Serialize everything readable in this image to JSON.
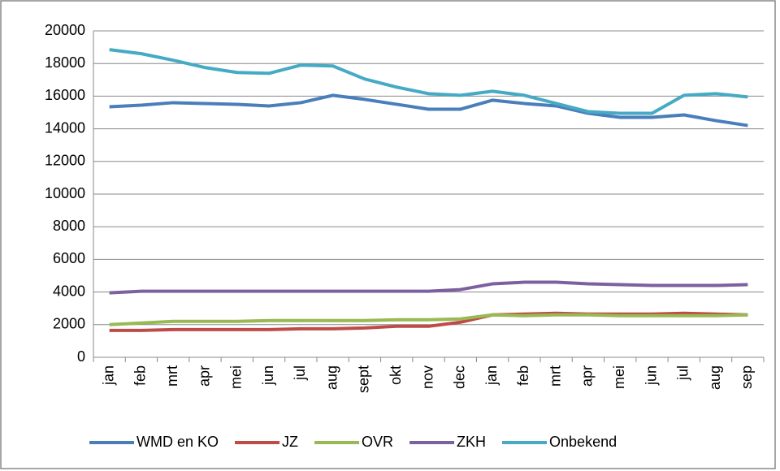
{
  "chart_data": {
    "type": "line",
    "categories": [
      "jan",
      "feb",
      "mrt",
      "apr",
      "mei",
      "jun",
      "jul",
      "aug",
      "sept",
      "okt",
      "nov",
      "dec",
      "jan",
      "feb",
      "mrt",
      "apr",
      "mei",
      "jun",
      "jul",
      "aug",
      "sep"
    ],
    "series": [
      {
        "name": "WMD en KO",
        "color": "#4a7ebb",
        "values": [
          15350,
          15450,
          15600,
          15550,
          15500,
          15400,
          15600,
          16050,
          15800,
          15500,
          15200,
          15200,
          15750,
          15550,
          15400,
          14950,
          14700,
          14700,
          14850,
          14500,
          14200
        ]
      },
      {
        "name": "JZ",
        "color": "#be4b48",
        "values": [
          1650,
          1650,
          1700,
          1700,
          1700,
          1700,
          1750,
          1750,
          1800,
          1900,
          1900,
          2150,
          2600,
          2650,
          2700,
          2650,
          2650,
          2650,
          2700,
          2650,
          2600
        ]
      },
      {
        "name": "OVR",
        "color": "#98b954",
        "values": [
          2000,
          2100,
          2200,
          2200,
          2200,
          2250,
          2250,
          2250,
          2250,
          2300,
          2300,
          2350,
          2600,
          2550,
          2600,
          2600,
          2550,
          2550,
          2550,
          2550,
          2600
        ]
      },
      {
        "name": "ZKH",
        "color": "#7d60a0",
        "values": [
          3950,
          4050,
          4050,
          4050,
          4050,
          4050,
          4050,
          4050,
          4050,
          4050,
          4050,
          4150,
          4500,
          4600,
          4600,
          4500,
          4450,
          4400,
          4400,
          4400,
          4450
        ]
      },
      {
        "name": "Onbekend",
        "color": "#46aac5",
        "values": [
          18850,
          18600,
          18200,
          17750,
          17450,
          17400,
          17900,
          17850,
          17050,
          16550,
          16150,
          16050,
          16300,
          16050,
          15550,
          15050,
          14950,
          14950,
          16050,
          16150,
          15950
        ]
      }
    ],
    "ylim": [
      0,
      20000
    ],
    "yticks": [
      0,
      2000,
      4000,
      6000,
      8000,
      10000,
      12000,
      14000,
      16000,
      18000,
      20000
    ],
    "grid": true,
    "legend": "bottom"
  }
}
